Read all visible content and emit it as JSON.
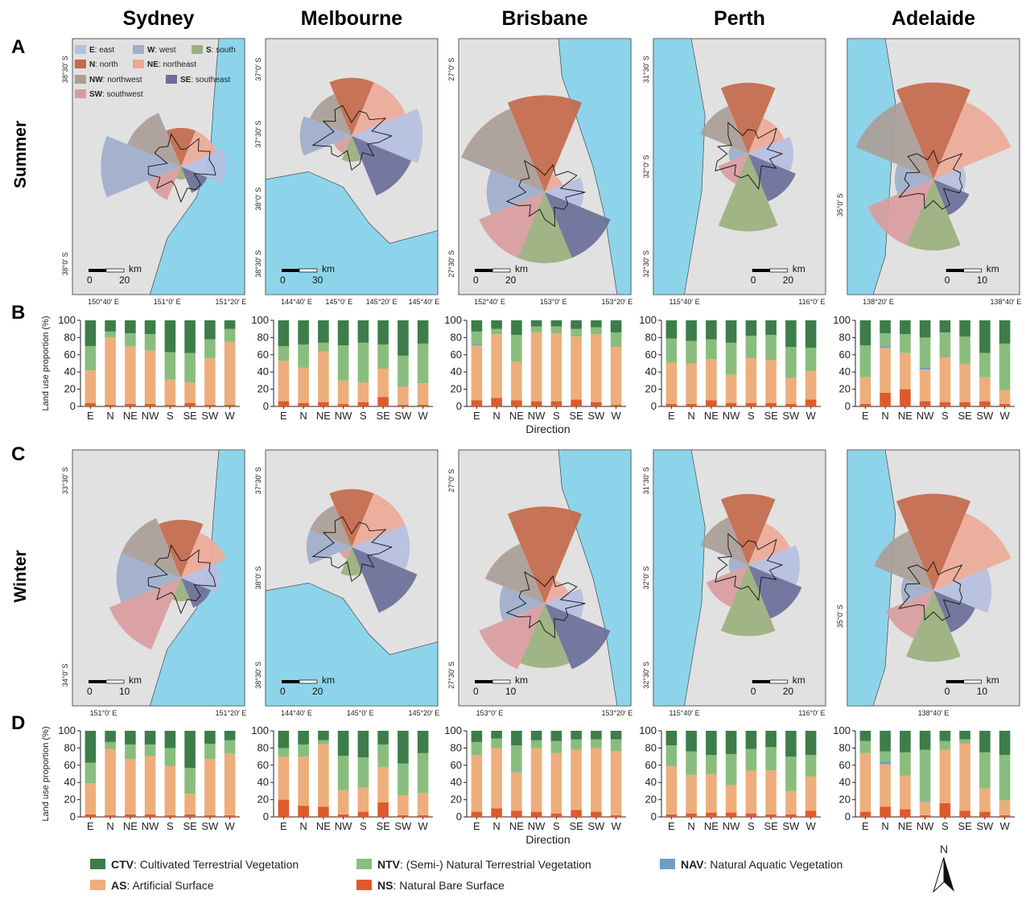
{
  "cities": [
    "Sydney",
    "Melbourne",
    "Brisbane",
    "Perth",
    "Adelaide"
  ],
  "panel_letters": [
    "A",
    "B",
    "C",
    "D"
  ],
  "seasons": [
    "Summer",
    "Winter"
  ],
  "north_label": "N",
  "colors": {
    "map_bg": "#e1e1e1",
    "sea": "#8dd4ea",
    "city": "#ffffff",
    "E": "#b5bfe0",
    "N": "#c4694b",
    "NE": "#edaa98",
    "NW": "#aa9e97",
    "S": "#9bb07e",
    "SE": "#6b6f98",
    "SW": "#d99c9e",
    "W": "#9eaecb",
    "CTV": "#3d7d4a",
    "NTV": "#89bd7e",
    "NAV": "#6e9ec4",
    "AS": "#edae7c",
    "NS": "#de5a2a"
  },
  "direction_legend": [
    {
      "code": "E",
      "sep": ": ",
      "name": "east"
    },
    {
      "code": "W",
      "sep": ": ",
      "name": "west"
    },
    {
      "code": "S",
      "sep": ": ",
      "name": "south"
    },
    {
      "code": "N",
      "sep": ": ",
      "name": "north"
    },
    {
      "code": "NE",
      "sep": ": ",
      "name": "northeast"
    },
    {
      "code": "NW",
      "sep": ": ",
      "name": "northwest"
    },
    {
      "code": "SE",
      "sep": ": ",
      "name": "southeast"
    },
    {
      "code": "SW",
      "sep": ": ",
      "name": "southwest"
    }
  ],
  "landuse_legend": [
    {
      "code": "CTV",
      "sep": ": ",
      "name": "Cultivated Terrestrial Vegetation"
    },
    {
      "code": "NTV",
      "sep": ": ",
      "name": "(Semi-) Natural Terrestrial Vegetation"
    },
    {
      "code": "NAV",
      "sep": ": ",
      "name": "Natural Aquatic Vegetation"
    },
    {
      "code": "AS",
      "sep": ": ",
      "name": "Artificial Surface"
    },
    {
      "code": "NS",
      "sep": ": ",
      "name": "Natural Bare Surface"
    }
  ],
  "maps": {
    "summer": [
      {
        "x_ticks": [
          "150°40′ E",
          "151°0′ E",
          "151°20′ E"
        ],
        "y_ticks": [
          "38°30′ S",
          "38°0′ S"
        ],
        "scale_units": "km",
        "scale_values": [
          "0",
          "20"
        ]
      },
      {
        "x_ticks": [
          "144°40′ E",
          "145°0′ E",
          "145°20′ E",
          "145°40′ E"
        ],
        "y_ticks": [
          "37°0′ S",
          "37°30′ S",
          "38°0′ S",
          "38°30′ S"
        ],
        "scale_units": "km",
        "scale_values": [
          "0",
          "30"
        ]
      },
      {
        "x_ticks": [
          "152°40′ E",
          "153°0′ E",
          "153°20′ E"
        ],
        "y_ticks": [
          "27°0′ S",
          "27°30′ S"
        ],
        "scale_units": "km",
        "scale_values": [
          "0",
          "20"
        ]
      },
      {
        "x_ticks": [
          "115°40′ E",
          "116°0′ E"
        ],
        "y_ticks": [
          "31°30′ S",
          "32°0′ S",
          "32°30′ S"
        ],
        "scale_units": "km",
        "scale_values": [
          "0",
          "20"
        ]
      },
      {
        "x_ticks": [
          "138°20′ E",
          "138°40′ E"
        ],
        "y_ticks": [
          "35°0′ S"
        ],
        "scale_units": "km",
        "scale_values": [
          "0",
          "10"
        ]
      }
    ],
    "winter": [
      {
        "x_ticks": [
          "151°0′ E",
          "151°20′ E"
        ],
        "y_ticks": [
          "33°30′ S",
          "34°0′ S"
        ],
        "scale_units": "km",
        "scale_values": [
          "0",
          "10"
        ]
      },
      {
        "x_ticks": [
          "144°40′ E",
          "145°0′ E",
          "145°20′ E"
        ],
        "y_ticks": [
          "37°30′ S",
          "38°0′ S",
          "38°30′ S"
        ],
        "scale_units": "km",
        "scale_values": [
          "0",
          "20"
        ]
      },
      {
        "x_ticks": [
          "153°0′ E",
          "153°20′ E"
        ],
        "y_ticks": [
          "27°0′ S",
          "27°30′ S"
        ],
        "scale_units": "km",
        "scale_values": [
          "0",
          "10"
        ]
      },
      {
        "x_ticks": [
          "115°40′ E",
          "116°0′ E"
        ],
        "y_ticks": [
          "31°30′ S",
          "32°0′ S",
          "32°30′ S"
        ],
        "scale_units": "km",
        "scale_values": [
          "0",
          "20"
        ]
      },
      {
        "x_ticks": [
          "138°40′ E"
        ],
        "y_ticks": [
          "35°0′ S"
        ],
        "scale_units": "km",
        "scale_values": [
          "0",
          "10"
        ]
      }
    ]
  },
  "chart_data": {
    "type": "bar",
    "stacked": true,
    "categories": [
      "E",
      "N",
      "NE",
      "NW",
      "S",
      "SE",
      "SW",
      "W"
    ],
    "ylabel": "Land use proportion (%)",
    "xlabel": "Direction",
    "ylim": [
      0,
      100
    ],
    "yticks": [
      0,
      20,
      40,
      60,
      80,
      100
    ],
    "stack_order": [
      "NS",
      "AS",
      "NAV",
      "NTV",
      "CTV"
    ],
    "groups": [
      {
        "panel": "B",
        "season": "Summer",
        "charts": [
          {
            "city": "Sydney",
            "series": {
              "NS": [
                4,
                2,
                3,
                3,
                2,
                4,
                2,
                2
              ],
              "AS": [
                38,
                78,
                67,
                62,
                29,
                24,
                54,
                73
              ],
              "NAV": [
                0,
                0,
                0,
                0,
                0,
                0,
                0,
                0
              ],
              "NTV": [
                28,
                7,
                15,
                19,
                32,
                34,
                22,
                15
              ],
              "CTV": [
                30,
                13,
                15,
                16,
                37,
                38,
                22,
                10
              ]
            }
          },
          {
            "city": "Melbourne",
            "series": {
              "NS": [
                6,
                4,
                5,
                3,
                5,
                11,
                2,
                2
              ],
              "AS": [
                47,
                41,
                59,
                27,
                23,
                33,
                21,
                25
              ],
              "NAV": [
                0,
                0,
                0,
                0,
                0,
                0,
                0,
                0
              ],
              "NTV": [
                17,
                27,
                10,
                41,
                46,
                28,
                36,
                46
              ],
              "CTV": [
                30,
                28,
                26,
                29,
                26,
                28,
                41,
                27
              ]
            }
          },
          {
            "city": "Brisbane",
            "series": {
              "NS": [
                7,
                10,
                7,
                6,
                6,
                8,
                5,
                2
              ],
              "AS": [
                64,
                74,
                45,
                80,
                79,
                73,
                79,
                67
              ],
              "NAV": [
                1,
                0,
                0,
                0,
                0,
                0,
                0,
                0
              ],
              "NTV": [
                15,
                6,
                31,
                7,
                8,
                9,
                8,
                17
              ],
              "CTV": [
                13,
                10,
                17,
                7,
                7,
                10,
                8,
                14
              ]
            }
          },
          {
            "city": "Perth",
            "series": {
              "NS": [
                3,
                3,
                7,
                4,
                4,
                4,
                3,
                8
              ],
              "AS": [
                48,
                47,
                48,
                33,
                52,
                50,
                30,
                33
              ],
              "NAV": [
                0,
                0,
                0,
                0,
                0,
                0,
                0,
                0
              ],
              "NTV": [
                28,
                26,
                23,
                37,
                26,
                29,
                36,
                27
              ],
              "CTV": [
                21,
                24,
                22,
                26,
                18,
                17,
                31,
                32
              ]
            }
          },
          {
            "city": "Adelaide",
            "series": {
              "NS": [
                3,
                16,
                20,
                6,
                5,
                5,
                6,
                3
              ],
              "AS": [
                31,
                52,
                42,
                37,
                52,
                44,
                28,
                16
              ],
              "NAV": [
                0,
                2,
                0,
                2,
                0,
                0,
                0,
                0
              ],
              "NTV": [
                37,
                15,
                22,
                35,
                29,
                32,
                28,
                54
              ],
              "CTV": [
                29,
                15,
                16,
                20,
                14,
                19,
                38,
                27
              ]
            }
          }
        ]
      },
      {
        "panel": "D",
        "season": "Winter",
        "charts": [
          {
            "city": "Sydney",
            "series": {
              "NS": [
                3,
                2,
                3,
                3,
                2,
                3,
                2,
                2
              ],
              "AS": [
                36,
                77,
                64,
                68,
                57,
                24,
                65,
                72
              ],
              "NAV": [
                0,
                0,
                0,
                0,
                0,
                0,
                0,
                0
              ],
              "NTV": [
                24,
                8,
                17,
                13,
                21,
                30,
                18,
                15
              ],
              "CTV": [
                37,
                13,
                16,
                16,
                20,
                43,
                15,
                11
              ]
            }
          },
          {
            "city": "Melbourne",
            "series": {
              "NS": [
                20,
                13,
                12,
                3,
                6,
                17,
                2,
                2
              ],
              "AS": [
                50,
                57,
                73,
                28,
                28,
                41,
                23,
                26
              ],
              "NAV": [
                0,
                0,
                0,
                0,
                0,
                0,
                0,
                0
              ],
              "NTV": [
                10,
                14,
                4,
                40,
                35,
                26,
                37,
                46
              ],
              "CTV": [
                20,
                16,
                11,
                29,
                31,
                16,
                38,
                26
              ]
            }
          },
          {
            "city": "Brisbane",
            "series": {
              "NS": [
                6,
                10,
                7,
                6,
                4,
                8,
                6,
                2
              ],
              "AS": [
                66,
                70,
                45,
                74,
                70,
                70,
                74,
                74
              ],
              "NAV": [
                0,
                0,
                1,
                0,
                0,
                0,
                0,
                0
              ],
              "NTV": [
                15,
                11,
                30,
                9,
                14,
                12,
                10,
                14
              ],
              "CTV": [
                13,
                9,
                17,
                11,
                12,
                10,
                10,
                10
              ]
            }
          },
          {
            "city": "Perth",
            "series": {
              "NS": [
                3,
                4,
                5,
                5,
                4,
                3,
                3,
                7
              ],
              "AS": [
                56,
                45,
                45,
                32,
                50,
                51,
                27,
                40
              ],
              "NAV": [
                0,
                0,
                0,
                0,
                0,
                0,
                0,
                0
              ],
              "NTV": [
                24,
                27,
                22,
                36,
                25,
                27,
                40,
                25
              ],
              "CTV": [
                17,
                24,
                28,
                27,
                21,
                19,
                30,
                28
              ]
            }
          },
          {
            "city": "Adelaide",
            "series": {
              "NS": [
                6,
                12,
                9,
                2,
                16,
                7,
                6,
                2
              ],
              "AS": [
                68,
                49,
                39,
                16,
                62,
                78,
                27,
                17
              ],
              "NAV": [
                0,
                3,
                0,
                1,
                0,
                0,
                0,
                0
              ],
              "NTV": [
                14,
                12,
                27,
                59,
                10,
                5,
                42,
                53
              ],
              "CTV": [
                12,
                24,
                25,
                22,
                12,
                10,
                25,
                28
              ]
            }
          }
        ]
      }
    ]
  }
}
